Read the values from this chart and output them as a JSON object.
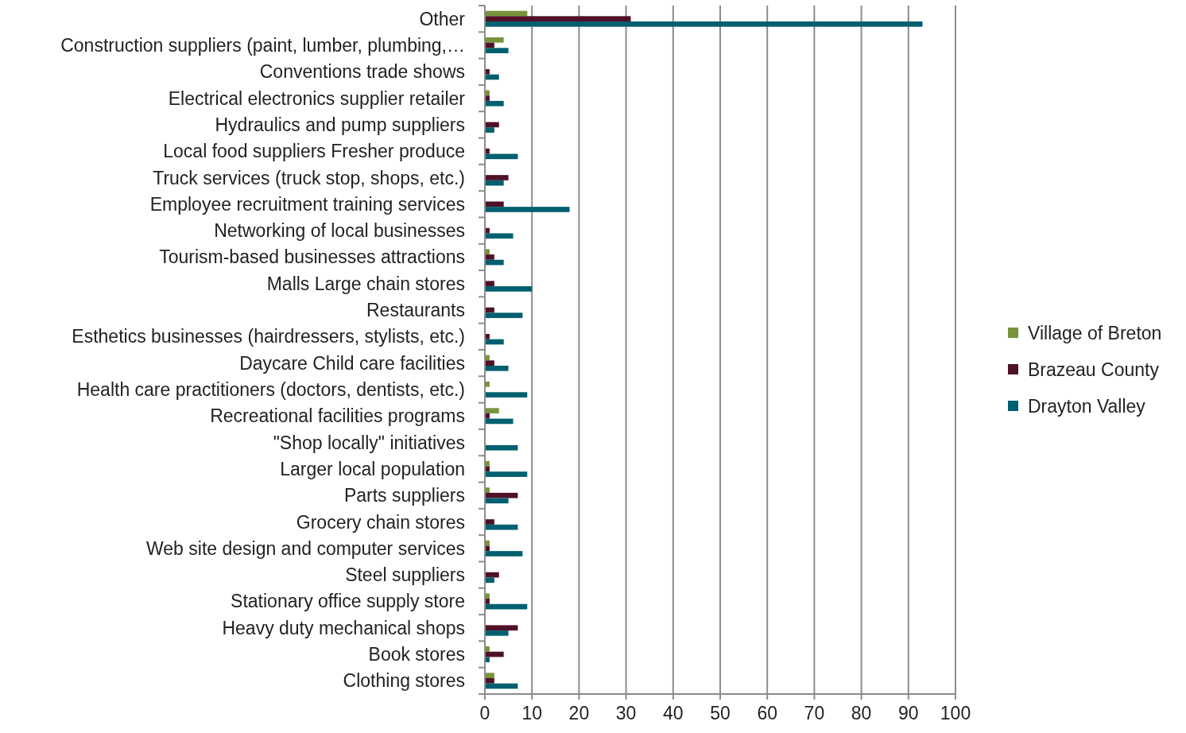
{
  "chart_data": {
    "type": "bar",
    "orientation": "horizontal",
    "categories": [
      "Other",
      "Construction suppliers (paint, lumber, plumbing,…",
      "Conventions trade shows",
      "Electrical electronics supplier retailer",
      "Hydraulics and pump suppliers",
      "Local food suppliers Fresher produce",
      "Truck services (truck stop, shops, etc.)",
      "Employee recruitment training services",
      "Networking of local businesses",
      "Tourism-based businesses attractions",
      "Malls Large chain stores",
      "Restaurants",
      "Esthetics businesses (hairdressers, stylists, etc.)",
      "Daycare Child care facilities",
      "Health care practitioners (doctors, dentists, etc.)",
      "Recreational facilities programs",
      "\"Shop locally\" initiatives",
      "Larger local population",
      "Parts suppliers",
      "Grocery chain stores",
      "Web site design and computer services",
      "Steel suppliers",
      "Stationary office supply store",
      "Heavy duty mechanical shops",
      "Book stores",
      "Clothing stores"
    ],
    "series": [
      {
        "name": "Village of Breton",
        "color": "#77933c",
        "values": [
          9,
          4,
          0,
          1,
          0,
          0,
          0,
          0,
          0,
          1,
          0,
          0,
          0,
          1,
          1,
          3,
          0,
          1,
          1,
          0,
          1,
          0,
          1,
          0,
          1,
          2
        ]
      },
      {
        "name": "Brazeau County",
        "color": "#4f1127",
        "values": [
          31,
          2,
          1,
          1,
          3,
          1,
          5,
          4,
          1,
          2,
          2,
          2,
          1,
          2,
          0,
          1,
          0,
          1,
          7,
          2,
          1,
          3,
          1,
          7,
          4,
          2
        ]
      },
      {
        "name": "Drayton Valley",
        "color": "#005f6e",
        "values": [
          93,
          5,
          3,
          4,
          2,
          7,
          4,
          18,
          6,
          4,
          10,
          8,
          4,
          5,
          9,
          6,
          7,
          9,
          5,
          7,
          8,
          2,
          9,
          5,
          1,
          7
        ]
      }
    ],
    "xlim": [
      0,
      100
    ],
    "xticks": [
      0,
      10,
      20,
      30,
      40,
      50,
      60,
      70,
      80,
      90,
      100
    ],
    "grid": "x",
    "legend": "right"
  }
}
